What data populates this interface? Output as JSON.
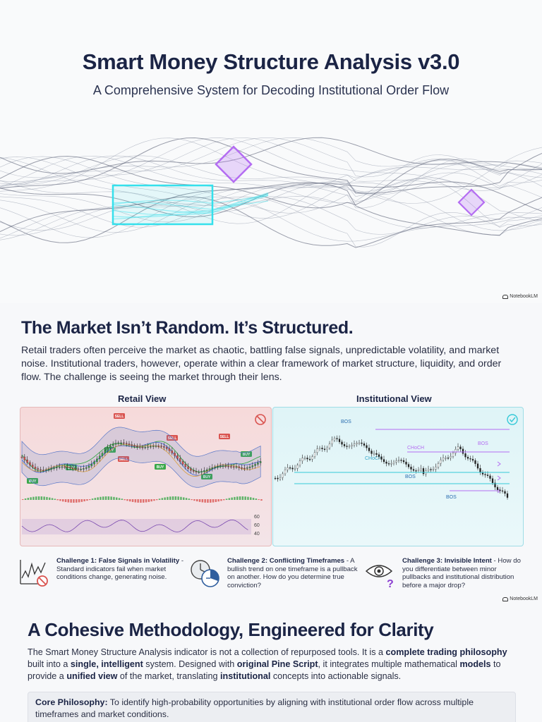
{
  "hero": {
    "title": "Smart Money Structure Analysis v3.0",
    "subtitle": "A Comprehensive System for Decoding Institutional Order Flow"
  },
  "brand": {
    "name": "NotebookLM",
    "icon": "notebook-icon"
  },
  "section1": {
    "title": "The Market Isn’t Random. It’s Structured.",
    "body": "Retail traders often perceive the market as chaotic, battling false signals, unpredictable volatility, and market noise. Institutional traders, however, operate within a clear framework of market structure, liquidity, and order flow. The challenge is seeing the market through their lens."
  },
  "retail_view": {
    "label": "Retail View",
    "icon": "prohibited-icon",
    "signals": [
      "SELL",
      "BUY",
      "SELL",
      "BUY",
      "SELL",
      "BUY",
      "BUY",
      "SELL",
      "BUY",
      "BUY"
    ],
    "oscillator_levels": [
      "60",
      "60",
      "40"
    ]
  },
  "institutional_view": {
    "label": "Institutional View",
    "icon": "check-circle-icon",
    "annotations": [
      "BOS",
      "CHoCH",
      "CHoCH",
      "BOS",
      "BOS",
      "BOS"
    ]
  },
  "challenges": [
    {
      "title": "Challenge 1: False Signals in Volatility",
      "text": " - Standard indicators fail when market conditions change, generating noise.",
      "icon": "volatility-warning-icon"
    },
    {
      "title": "Challenge 2: Conflicting Timeframes",
      "text": " - A bullish trend on one timeframe is a pullback on another. How do you determine true conviction?",
      "icon": "clocks-icon"
    },
    {
      "title": "Challenge 3: Invisible Intent",
      "text": " - How do you differentiate between minor pullbacks and institutional distribution before a major drop?",
      "icon": "eye-question-icon"
    }
  ],
  "section2": {
    "title": "A Cohesive Methodology, Engineered for Clarity",
    "body_parts": [
      "The Smart Money Structure Analysis indicator is not a collection of repurposed tools. It is a ",
      "complete trading philosophy",
      " built into a ",
      "single, intelligent",
      " system. Designed with ",
      "original Pine Script",
      ", it integrates multiple mathematical ",
      "models",
      " to provide a ",
      "unified view",
      " of the market, translating ",
      "institutional",
      " concepts into actionable signals."
    ],
    "core_label": "Core Philosophy:",
    "core_text": " To identify high-probability opportunities by aligning with institutional order flow across multiple timeframes and market conditions."
  },
  "colors": {
    "accent_cyan": "#35e0ec",
    "accent_purple": "#b46df2",
    "sell_red": "#d9534f",
    "buy_green": "#3aa84a",
    "navy": "#1b2445"
  }
}
